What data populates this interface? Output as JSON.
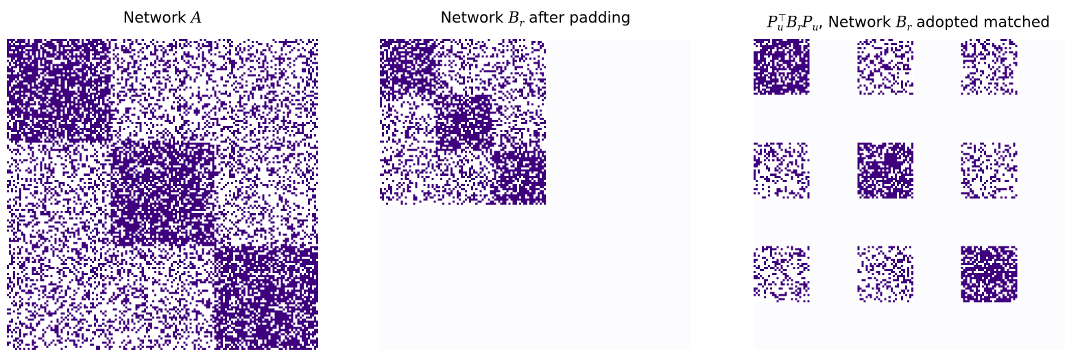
{
  "colors": {
    "edge": "#3f007d",
    "empty": "#fcfbfd",
    "panel_bg": "#fcfbfd"
  },
  "panels": [
    {
      "title": {
        "prefix": "Network ",
        "var": "A",
        "sub": "",
        "suffix": ""
      },
      "chart_data": {
        "type": "heatmap",
        "matrix_size": 150,
        "axes": "off",
        "blocks": [
          {
            "rows": [
              0,
              50
            ],
            "cols": [
              0,
              50
            ],
            "density": 0.7
          },
          {
            "rows": [
              0,
              50
            ],
            "cols": [
              50,
              100
            ],
            "density": 0.3
          },
          {
            "rows": [
              0,
              50
            ],
            "cols": [
              100,
              150
            ],
            "density": 0.3
          },
          {
            "rows": [
              50,
              100
            ],
            "cols": [
              0,
              50
            ],
            "density": 0.3
          },
          {
            "rows": [
              50,
              100
            ],
            "cols": [
              50,
              100
            ],
            "density": 0.7
          },
          {
            "rows": [
              50,
              100
            ],
            "cols": [
              100,
              150
            ],
            "density": 0.3
          },
          {
            "rows": [
              100,
              150
            ],
            "cols": [
              0,
              50
            ],
            "density": 0.3
          },
          {
            "rows": [
              100,
              150
            ],
            "cols": [
              50,
              100
            ],
            "density": 0.3
          },
          {
            "rows": [
              100,
              150
            ],
            "cols": [
              100,
              150
            ],
            "density": 0.7
          }
        ]
      }
    },
    {
      "title": {
        "prefix": "Network ",
        "var": "B",
        "sub": "r",
        "suffix": " after padding"
      },
      "chart_data": {
        "type": "heatmap",
        "matrix_size": 150,
        "axes": "off",
        "blocks": [
          {
            "rows": [
              0,
              27
            ],
            "cols": [
              0,
              27
            ],
            "density": 0.7
          },
          {
            "rows": [
              0,
              27
            ],
            "cols": [
              27,
              54
            ],
            "density": 0.3
          },
          {
            "rows": [
              0,
              27
            ],
            "cols": [
              54,
              80
            ],
            "density": 0.3
          },
          {
            "rows": [
              27,
              54
            ],
            "cols": [
              0,
              27
            ],
            "density": 0.3
          },
          {
            "rows": [
              27,
              54
            ],
            "cols": [
              27,
              54
            ],
            "density": 0.7
          },
          {
            "rows": [
              27,
              54
            ],
            "cols": [
              54,
              80
            ],
            "density": 0.3
          },
          {
            "rows": [
              54,
              80
            ],
            "cols": [
              0,
              27
            ],
            "density": 0.3
          },
          {
            "rows": [
              54,
              80
            ],
            "cols": [
              27,
              54
            ],
            "density": 0.3
          },
          {
            "rows": [
              54,
              80
            ],
            "cols": [
              54,
              80
            ],
            "density": 0.7
          }
        ]
      }
    },
    {
      "title": {
        "prefix": "",
        "var": "P",
        "sub": "u",
        "sup": "⊤",
        "mid": "B",
        "mid_sub": "r",
        "end": "P",
        "end_sub": "u",
        "suffix": ", Network ",
        "var2": "B",
        "var2_sub": "r",
        "tail": " adopted matched"
      },
      "chart_data": {
        "type": "heatmap",
        "matrix_size": 150,
        "axes": "off",
        "blocks": [
          {
            "rows": [
              0,
              27
            ],
            "cols": [
              0,
              27
            ],
            "density": 0.7
          },
          {
            "rows": [
              0,
              27
            ],
            "cols": [
              50,
              77
            ],
            "density": 0.3
          },
          {
            "rows": [
              0,
              27
            ],
            "cols": [
              100,
              127
            ],
            "density": 0.3
          },
          {
            "rows": [
              50,
              77
            ],
            "cols": [
              0,
              27
            ],
            "density": 0.3
          },
          {
            "rows": [
              50,
              77
            ],
            "cols": [
              50,
              77
            ],
            "density": 0.7
          },
          {
            "rows": [
              50,
              77
            ],
            "cols": [
              100,
              127
            ],
            "density": 0.3
          },
          {
            "rows": [
              100,
              127
            ],
            "cols": [
              0,
              27
            ],
            "density": 0.3
          },
          {
            "rows": [
              100,
              127
            ],
            "cols": [
              50,
              77
            ],
            "density": 0.3
          },
          {
            "rows": [
              100,
              127
            ],
            "cols": [
              100,
              127
            ],
            "density": 0.7
          }
        ]
      }
    }
  ]
}
